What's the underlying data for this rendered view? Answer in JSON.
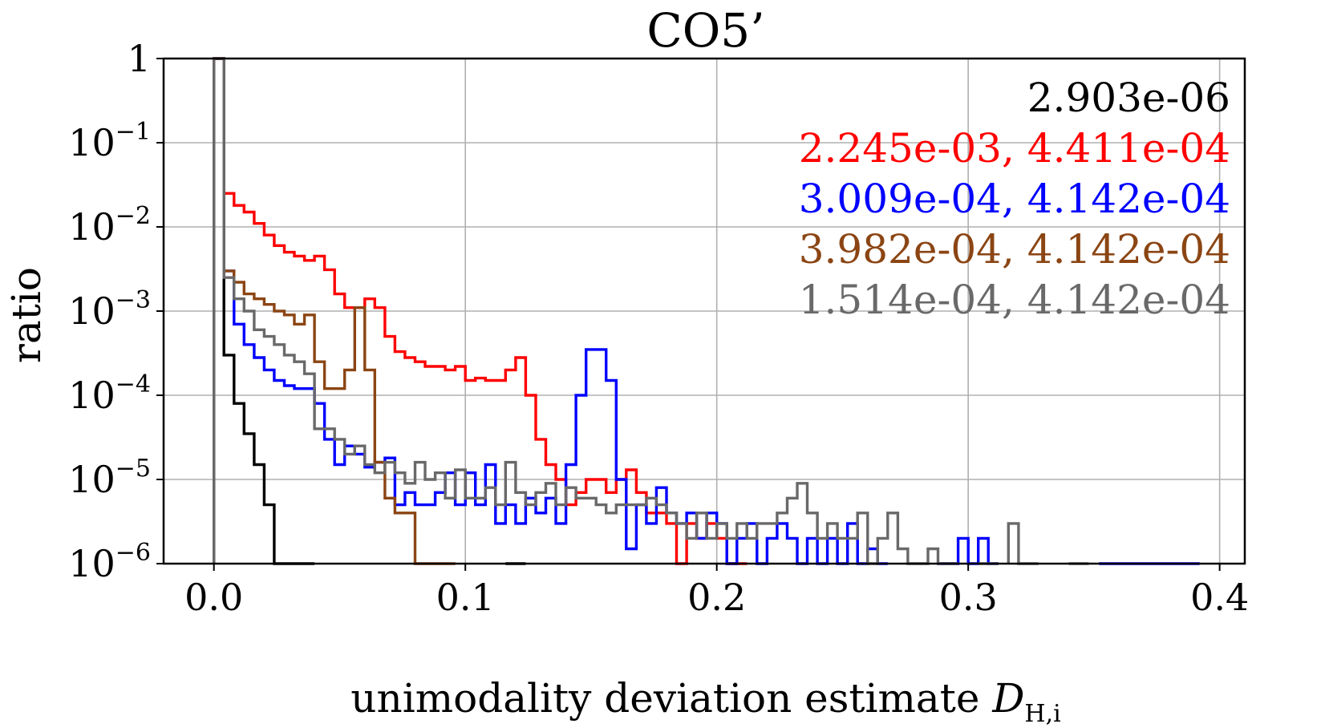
{
  "chart_data": {
    "type": "step-histogram",
    "title": "CO5’",
    "xlabel": "unimodality deviation estimate",
    "xlabel_symbol": "D",
    "xlabel_subscript": "H,i",
    "ylabel": "ratio",
    "xlim": [
      -0.02,
      0.41
    ],
    "ylim_log10": [
      -6,
      0
    ],
    "xticks": [
      0.0,
      0.1,
      0.2,
      0.3,
      0.4
    ],
    "xtick_labels": [
      "0.0",
      "0.1",
      "0.2",
      "0.3",
      "0.4"
    ],
    "yticks": [
      {
        "exp": 0,
        "base": "1",
        "sup": ""
      },
      {
        "exp": -1,
        "base": "10",
        "sup": "−1"
      },
      {
        "exp": -2,
        "base": "10",
        "sup": "−2"
      },
      {
        "exp": -3,
        "base": "10",
        "sup": "−3"
      },
      {
        "exp": -4,
        "base": "10",
        "sup": "−4"
      },
      {
        "exp": -5,
        "base": "10",
        "sup": "−5"
      },
      {
        "exp": -6,
        "base": "10",
        "sup": "−6"
      }
    ],
    "grid": true,
    "legend_position": "top-right",
    "bin_width": 0.004,
    "series": [
      {
        "name": "black",
        "color": "#000000",
        "label": "2.903e-06",
        "bins": [
          [
            0.0,
            1
          ],
          [
            0.004,
            0.0003
          ],
          [
            0.008,
            8e-05
          ],
          [
            0.012,
            3.5e-05
          ],
          [
            0.016,
            1.5e-05
          ],
          [
            0.02,
            5e-06
          ],
          [
            0.024,
            1e-06
          ],
          [
            0.028,
            5e-07
          ],
          [
            0.032,
            1e-06
          ],
          [
            0.036,
            0
          ],
          [
            0.116,
            1e-06
          ],
          [
            0.12,
            0
          ]
        ]
      },
      {
        "name": "red",
        "color": "#ff0000",
        "label": "2.245e-03, 4.411e-04",
        "bins": [
          [
            0.0,
            1
          ],
          [
            0.004,
            0.025
          ],
          [
            0.008,
            0.018
          ],
          [
            0.012,
            0.015
          ],
          [
            0.016,
            0.011
          ],
          [
            0.02,
            0.008
          ],
          [
            0.024,
            0.006
          ],
          [
            0.028,
            0.005
          ],
          [
            0.032,
            0.0045
          ],
          [
            0.036,
            0.004
          ],
          [
            0.04,
            0.0045
          ],
          [
            0.044,
            0.0031
          ],
          [
            0.048,
            0.0016
          ],
          [
            0.052,
            0.0011
          ],
          [
            0.056,
            0.0011
          ],
          [
            0.06,
            0.0014
          ],
          [
            0.064,
            0.0011
          ],
          [
            0.068,
            0.0005
          ],
          [
            0.072,
            0.00033
          ],
          [
            0.076,
            0.00028
          ],
          [
            0.08,
            0.00025
          ],
          [
            0.084,
            0.00022
          ],
          [
            0.088,
            0.00022
          ],
          [
            0.092,
            0.0002
          ],
          [
            0.096,
            0.00022
          ],
          [
            0.1,
            0.00015
          ],
          [
            0.104,
            0.00016
          ],
          [
            0.108,
            0.00015
          ],
          [
            0.112,
            0.00015
          ],
          [
            0.116,
            0.0002
          ],
          [
            0.12,
            0.00028
          ],
          [
            0.124,
            0.0001
          ],
          [
            0.128,
            3e-05
          ],
          [
            0.132,
            1.5e-05
          ],
          [
            0.136,
            1e-05
          ],
          [
            0.14,
            5e-06
          ],
          [
            0.144,
            7e-06
          ],
          [
            0.148,
            1e-05
          ],
          [
            0.152,
            1e-05
          ],
          [
            0.156,
            7e-06
          ],
          [
            0.16,
            1e-05
          ],
          [
            0.164,
            1.3e-05
          ],
          [
            0.168,
            7e-06
          ],
          [
            0.172,
            4e-06
          ],
          [
            0.176,
            4e-06
          ],
          [
            0.18,
            3e-06
          ],
          [
            0.184,
            1e-06
          ],
          [
            0.188,
            3e-06
          ],
          [
            0.192,
            2e-06
          ],
          [
            0.196,
            3e-06
          ],
          [
            0.2,
            2e-06
          ],
          [
            0.204,
            1e-06
          ],
          [
            0.208,
            0
          ]
        ]
      },
      {
        "name": "blue",
        "color": "#0000ff",
        "label": "3.009e-04, 4.142e-04",
        "bins": [
          [
            0.0,
            1
          ],
          [
            0.004,
            0.003
          ],
          [
            0.008,
            0.0007
          ],
          [
            0.012,
            0.0004
          ],
          [
            0.016,
            0.00028
          ],
          [
            0.02,
            0.0002
          ],
          [
            0.024,
            0.00015
          ],
          [
            0.028,
            0.00013
          ],
          [
            0.032,
            0.00012
          ],
          [
            0.036,
            0.00012
          ],
          [
            0.04,
            8e-05
          ],
          [
            0.044,
            3e-05
          ],
          [
            0.048,
            1.5e-05
          ],
          [
            0.052,
            2.5e-05
          ],
          [
            0.056,
            2e-05
          ],
          [
            0.06,
            1.4e-05
          ],
          [
            0.064,
            1.6e-05
          ],
          [
            0.068,
            1.8e-05
          ],
          [
            0.072,
            5e-06
          ],
          [
            0.076,
            7e-06
          ],
          [
            0.08,
            5e-06
          ],
          [
            0.084,
            5e-06
          ],
          [
            0.088,
            7e-06
          ],
          [
            0.092,
            1.2e-05
          ],
          [
            0.096,
            5e-06
          ],
          [
            0.1,
            1.2e-05
          ],
          [
            0.104,
            5e-06
          ],
          [
            0.108,
            1.5e-05
          ],
          [
            0.112,
            3e-06
          ],
          [
            0.116,
            5e-06
          ],
          [
            0.12,
            3e-06
          ],
          [
            0.124,
            6e-06
          ],
          [
            0.128,
            4e-06
          ],
          [
            0.132,
            6e-06
          ],
          [
            0.136,
            3e-06
          ],
          [
            0.14,
            1.5e-05
          ],
          [
            0.144,
            0.0001
          ],
          [
            0.148,
            0.00035
          ],
          [
            0.152,
            0.00035
          ],
          [
            0.156,
            0.00015
          ],
          [
            0.16,
            1e-05
          ],
          [
            0.164,
            1.5e-06
          ],
          [
            0.168,
            5e-06
          ],
          [
            0.172,
            3e-06
          ],
          [
            0.176,
            8e-06
          ],
          [
            0.18,
            4e-06
          ],
          [
            0.184,
            3e-06
          ],
          [
            0.188,
            4e-06
          ],
          [
            0.192,
            2e-06
          ],
          [
            0.196,
            4e-06
          ],
          [
            0.2,
            3e-06
          ],
          [
            0.204,
            1e-06
          ],
          [
            0.208,
            2e-06
          ],
          [
            0.212,
            3e-06
          ],
          [
            0.216,
            1e-06
          ],
          [
            0.22,
            2e-06
          ],
          [
            0.224,
            3e-06
          ],
          [
            0.228,
            2e-06
          ],
          [
            0.232,
            1e-06
          ],
          [
            0.236,
            2e-06
          ],
          [
            0.24,
            1e-06
          ],
          [
            0.244,
            2e-06
          ],
          [
            0.248,
            1e-06
          ],
          [
            0.252,
            3e-06
          ],
          [
            0.256,
            1e-06
          ],
          [
            0.26,
            1.5e-06
          ],
          [
            0.264,
            0
          ],
          [
            0.288,
            1e-06
          ],
          [
            0.292,
            0
          ],
          [
            0.296,
            2e-06
          ],
          [
            0.3,
            5e-07
          ],
          [
            0.304,
            2e-06
          ],
          [
            0.308,
            0
          ],
          [
            0.352,
            1e-06
          ],
          [
            0.356,
            0
          ],
          [
            0.36,
            1e-06
          ],
          [
            0.364,
            0
          ],
          [
            0.368,
            1e-06
          ],
          [
            0.372,
            1e-06
          ],
          [
            0.376,
            1e-06
          ],
          [
            0.38,
            1e-06
          ],
          [
            0.384,
            1e-06
          ],
          [
            0.388,
            0
          ]
        ]
      },
      {
        "name": "brown",
        "color": "#8b4513",
        "label": "3.982e-04, 4.142e-04",
        "bins": [
          [
            0.0,
            1
          ],
          [
            0.004,
            0.003
          ],
          [
            0.008,
            0.0022
          ],
          [
            0.012,
            0.0016
          ],
          [
            0.016,
            0.0014
          ],
          [
            0.02,
            0.0012
          ],
          [
            0.024,
            0.001
          ],
          [
            0.028,
            0.0009
          ],
          [
            0.032,
            0.0007
          ],
          [
            0.036,
            0.0009
          ],
          [
            0.04,
            0.00025
          ],
          [
            0.044,
            0.00012
          ],
          [
            0.048,
            0.00012
          ],
          [
            0.052,
            0.0002
          ],
          [
            0.056,
            0.0011
          ],
          [
            0.06,
            0.0002
          ],
          [
            0.064,
            1.6e-05
          ],
          [
            0.068,
            6e-06
          ],
          [
            0.072,
            4e-06
          ],
          [
            0.076,
            4e-06
          ],
          [
            0.08,
            5e-07
          ],
          [
            0.084,
            0
          ],
          [
            0.088,
            1e-06
          ],
          [
            0.092,
            0
          ]
        ]
      },
      {
        "name": "gray",
        "color": "#696969",
        "label": "1.514e-04, 4.142e-04",
        "bins": [
          [
            0.0,
            1
          ],
          [
            0.004,
            0.0025
          ],
          [
            0.008,
            0.0014
          ],
          [
            0.012,
            0.001
          ],
          [
            0.016,
            0.0006
          ],
          [
            0.02,
            0.0005
          ],
          [
            0.024,
            0.0004
          ],
          [
            0.028,
            0.0003
          ],
          [
            0.032,
            0.00025
          ],
          [
            0.036,
            0.00018
          ],
          [
            0.04,
            4e-05
          ],
          [
            0.044,
            4e-05
          ],
          [
            0.048,
            3e-05
          ],
          [
            0.052,
            2e-05
          ],
          [
            0.056,
            2.5e-05
          ],
          [
            0.06,
            1.5e-05
          ],
          [
            0.064,
            1.2e-05
          ],
          [
            0.068,
            1.6e-05
          ],
          [
            0.072,
            1.2e-05
          ],
          [
            0.076,
            9e-06
          ],
          [
            0.08,
            1.6e-05
          ],
          [
            0.084,
            1e-05
          ],
          [
            0.088,
            1.2e-05
          ],
          [
            0.092,
            6e-06
          ],
          [
            0.096,
            1.3e-05
          ],
          [
            0.1,
            6e-06
          ],
          [
            0.104,
            6e-06
          ],
          [
            0.108,
            8e-06
          ],
          [
            0.112,
            5e-06
          ],
          [
            0.116,
            1.6e-05
          ],
          [
            0.12,
            7e-06
          ],
          [
            0.124,
            5e-06
          ],
          [
            0.128,
            7e-06
          ],
          [
            0.132,
            9e-06
          ],
          [
            0.136,
            5e-06
          ],
          [
            0.14,
            8e-06
          ],
          [
            0.144,
            6e-06
          ],
          [
            0.148,
            6e-06
          ],
          [
            0.152,
            5e-06
          ],
          [
            0.156,
            4e-06
          ],
          [
            0.16,
            5e-06
          ],
          [
            0.164,
            5e-06
          ],
          [
            0.168,
            5e-06
          ],
          [
            0.172,
            6e-06
          ],
          [
            0.176,
            5e-06
          ],
          [
            0.18,
            4e-06
          ],
          [
            0.184,
            3e-06
          ],
          [
            0.188,
            2e-06
          ],
          [
            0.192,
            4e-06
          ],
          [
            0.196,
            2e-06
          ],
          [
            0.2,
            3e-06
          ],
          [
            0.204,
            2e-06
          ],
          [
            0.208,
            3e-06
          ],
          [
            0.212,
            2e-06
          ],
          [
            0.216,
            3e-06
          ],
          [
            0.22,
            3e-06
          ],
          [
            0.224,
            4e-06
          ],
          [
            0.228,
            6e-06
          ],
          [
            0.232,
            9e-06
          ],
          [
            0.236,
            4e-06
          ],
          [
            0.24,
            2e-06
          ],
          [
            0.244,
            3e-06
          ],
          [
            0.248,
            2e-06
          ],
          [
            0.252,
            2e-06
          ],
          [
            0.256,
            4e-06
          ],
          [
            0.26,
            1e-06
          ],
          [
            0.264,
            2e-06
          ],
          [
            0.268,
            4e-06
          ],
          [
            0.272,
            1.5e-06
          ],
          [
            0.276,
            1e-06
          ],
          [
            0.28,
            1e-06
          ],
          [
            0.284,
            1.5e-06
          ],
          [
            0.288,
            1e-06
          ],
          [
            0.292,
            0
          ],
          [
            0.304,
            1e-06
          ],
          [
            0.308,
            0
          ],
          [
            0.316,
            3e-06
          ],
          [
            0.32,
            5e-07
          ],
          [
            0.324,
            0
          ],
          [
            0.34,
            1e-06
          ],
          [
            0.344,
            0
          ]
        ]
      }
    ]
  }
}
